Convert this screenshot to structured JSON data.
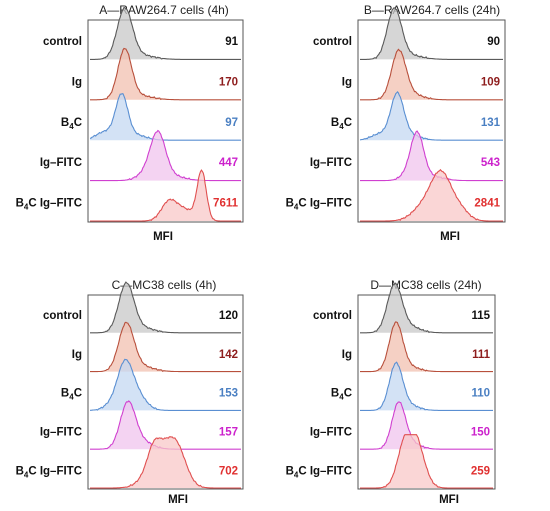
{
  "chart_data": [
    {
      "type": "histogram-overlay",
      "title": "A—RAW264.7 cells (4h)",
      "xlabel": "MFI",
      "xlim": [
        0,
        100
      ],
      "series": [
        {
          "name": "control",
          "label_main": "control",
          "label_sub": "",
          "label_post": "",
          "value": "91",
          "value_color": "#111111",
          "fill": "#c8c8c8",
          "line": "#5a5a5a",
          "peaks": [
            [
              23,
              5,
              0.94
            ],
            [
              33,
              9,
              0.08
            ]
          ]
        },
        {
          "name": "Ig",
          "label_main": "Ig",
          "label_sub": "",
          "label_post": "",
          "value": "170",
          "value_color": "#8e1d1d",
          "fill": "#f2c0b0",
          "line": "#b8503c",
          "peaks": [
            [
              23,
              4.5,
              0.93
            ],
            [
              32,
              9,
              0.08
            ]
          ]
        },
        {
          "name": "B4C",
          "label_main": "B",
          "label_sub": "4",
          "label_post": "C",
          "value": "97",
          "value_color": "#4a7fc2",
          "fill": "#c4d8f2",
          "line": "#5a8fd2",
          "peaks": [
            [
              21,
              4,
              0.82
            ],
            [
              10,
              6,
              0.16
            ],
            [
              30,
              7,
              0.1
            ]
          ]
        },
        {
          "name": "Ig–FITC",
          "label_main": "Ig–FITC",
          "label_sub": "",
          "label_post": "",
          "value": "447",
          "value_color": "#cc22cc",
          "fill": "#f0c4ee",
          "line": "#d040d0",
          "peaks": [
            [
              45,
              5,
              0.86
            ],
            [
              37,
              6,
              0.12
            ],
            [
              55,
              8,
              0.08
            ]
          ]
        },
        {
          "name": "B4C Ig–FITC",
          "label_main": "B",
          "label_sub": "4",
          "label_post": "C Ig–FITC",
          "value": "7611",
          "value_color": "#e03030",
          "fill": "#f8c8c8",
          "line": "#e05050",
          "peaks": [
            [
              74,
              3,
              0.92
            ],
            [
              52,
              5,
              0.32
            ],
            [
              62,
              7,
              0.22
            ]
          ]
        }
      ]
    },
    {
      "type": "histogram-overlay",
      "title": "B—RAW264.7 cells (24h)",
      "xlabel": "MFI",
      "xlim": [
        0,
        100
      ],
      "series": [
        {
          "name": "control",
          "label_main": "control",
          "label_sub": "",
          "label_post": "",
          "value": "90",
          "value_color": "#111111",
          "fill": "#c8c8c8",
          "line": "#5a5a5a",
          "peaks": [
            [
              24,
              5,
              0.94
            ],
            [
              34,
              9,
              0.08
            ]
          ]
        },
        {
          "name": "Ig",
          "label_main": "Ig",
          "label_sub": "",
          "label_post": "",
          "value": "109",
          "value_color": "#8e1d1d",
          "fill": "#f2c0b0",
          "line": "#b8503c",
          "peaks": [
            [
              27,
              5,
              0.9
            ],
            [
              36,
              8,
              0.1
            ]
          ]
        },
        {
          "name": "B4C",
          "label_main": "B",
          "label_sub": "4",
          "label_post": "C",
          "value": "131",
          "value_color": "#4a7fc2",
          "fill": "#c4d8f2",
          "line": "#5a8fd2",
          "peaks": [
            [
              26,
              4.5,
              0.85
            ],
            [
              14,
              6,
              0.12
            ],
            [
              35,
              7,
              0.1
            ]
          ]
        },
        {
          "name": "Ig–FITC",
          "label_main": "Ig–FITC",
          "label_sub": "",
          "label_post": "",
          "value": "543",
          "value_color": "#cc22cc",
          "fill": "#f0c4ee",
          "line": "#d040d0",
          "peaks": [
            [
              40,
              4.5,
              0.86
            ],
            [
              33,
              5,
              0.1
            ],
            [
              50,
              8,
              0.08
            ]
          ]
        },
        {
          "name": "B4C Ig–FITC",
          "label_main": "B",
          "label_sub": "4",
          "label_post": "C Ig–FITC",
          "value": "2841",
          "value_color": "#e03030",
          "fill": "#f8c8c8",
          "line": "#e05050",
          "peaks": [
            [
              57,
              7,
              0.85
            ],
            [
              45,
              8,
              0.28
            ],
            [
              70,
              6,
              0.2
            ]
          ]
        }
      ]
    },
    {
      "type": "histogram-overlay",
      "title": "C—MC38 cells (4h)",
      "xlabel": "MFI",
      "xlim": [
        0,
        100
      ],
      "series": [
        {
          "name": "control",
          "label_main": "control",
          "label_sub": "",
          "label_post": "",
          "value": "120",
          "value_color": "#111111",
          "fill": "#c8c8c8",
          "line": "#5a5a5a",
          "peaks": [
            [
              24,
              5,
              0.94
            ],
            [
              34,
              8,
              0.1
            ]
          ]
        },
        {
          "name": "Ig",
          "label_main": "Ig",
          "label_sub": "",
          "label_post": "",
          "value": "142",
          "value_color": "#8e1d1d",
          "fill": "#f2c0b0",
          "line": "#b8503c",
          "peaks": [
            [
              24,
              5,
              0.92
            ],
            [
              34,
              8,
              0.1
            ]
          ]
        },
        {
          "name": "B4C",
          "label_main": "B",
          "label_sub": "4",
          "label_post": "C",
          "value": "153",
          "value_color": "#4a7fc2",
          "fill": "#c4d8f2",
          "line": "#5a8fd2",
          "peaks": [
            [
              23,
              5,
              0.85
            ],
            [
              31,
              6,
              0.3
            ],
            [
              14,
              5,
              0.1
            ]
          ]
        },
        {
          "name": "Ig–FITC",
          "label_main": "Ig–FITC",
          "label_sub": "",
          "label_post": "",
          "value": "157",
          "value_color": "#cc22cc",
          "fill": "#f0c4ee",
          "line": "#d040d0",
          "peaks": [
            [
              25,
              5,
              0.88
            ],
            [
              34,
              7,
              0.15
            ]
          ]
        },
        {
          "name": "B4C Ig–FITC",
          "label_main": "B",
          "label_sub": "4",
          "label_post": "C Ig–FITC",
          "value": "702",
          "value_color": "#e03030",
          "fill": "#f8c8c8",
          "line": "#e05050",
          "peaks": [
            [
              48,
              9,
              0.75
            ],
            [
              42,
              4,
              0.3
            ],
            [
              58,
              6,
              0.5
            ]
          ]
        }
      ]
    },
    {
      "type": "histogram-overlay",
      "title": "D—MC38 cells (24h)",
      "xlabel": "MFI",
      "xlim": [
        0,
        100
      ],
      "series": [
        {
          "name": "control",
          "label_main": "control",
          "label_sub": "",
          "label_post": "",
          "value": "115",
          "value_color": "#111111",
          "fill": "#c8c8c8",
          "line": "#5a5a5a",
          "peaks": [
            [
              26,
              5.5,
              0.92
            ],
            [
              37,
              8,
              0.12
            ]
          ]
        },
        {
          "name": "Ig",
          "label_main": "Ig",
          "label_sub": "",
          "label_post": "",
          "value": "111",
          "value_color": "#8e1d1d",
          "fill": "#f2c0b0",
          "line": "#b8503c",
          "peaks": [
            [
              27,
              5,
              0.92
            ],
            [
              36,
              8,
              0.1
            ]
          ]
        },
        {
          "name": "B4C",
          "label_main": "B",
          "label_sub": "4",
          "label_post": "C",
          "value": "110",
          "value_color": "#4a7fc2",
          "fill": "#c4d8f2",
          "line": "#5a8fd2",
          "peaks": [
            [
              27,
              5,
              0.9
            ],
            [
              37,
              7,
              0.1
            ]
          ]
        },
        {
          "name": "Ig–FITC",
          "label_main": "Ig–FITC",
          "label_sub": "",
          "label_post": "",
          "value": "150",
          "value_color": "#cc22cc",
          "fill": "#f0c4ee",
          "line": "#d040d0",
          "peaks": [
            [
              29,
              5,
              0.88
            ],
            [
              38,
              7,
              0.12
            ]
          ]
        },
        {
          "name": "B4C Ig–FITC",
          "label_main": "B",
          "label_sub": "4",
          "label_post": "C Ig–FITC",
          "value": "259",
          "value_color": "#e03030",
          "fill": "#f8c8c8",
          "line": "#e05050",
          "peaks": [
            [
              38,
              7,
              0.85
            ],
            [
              32,
              5,
              0.3
            ],
            [
              44,
              6,
              0.35
            ]
          ]
        }
      ]
    }
  ]
}
